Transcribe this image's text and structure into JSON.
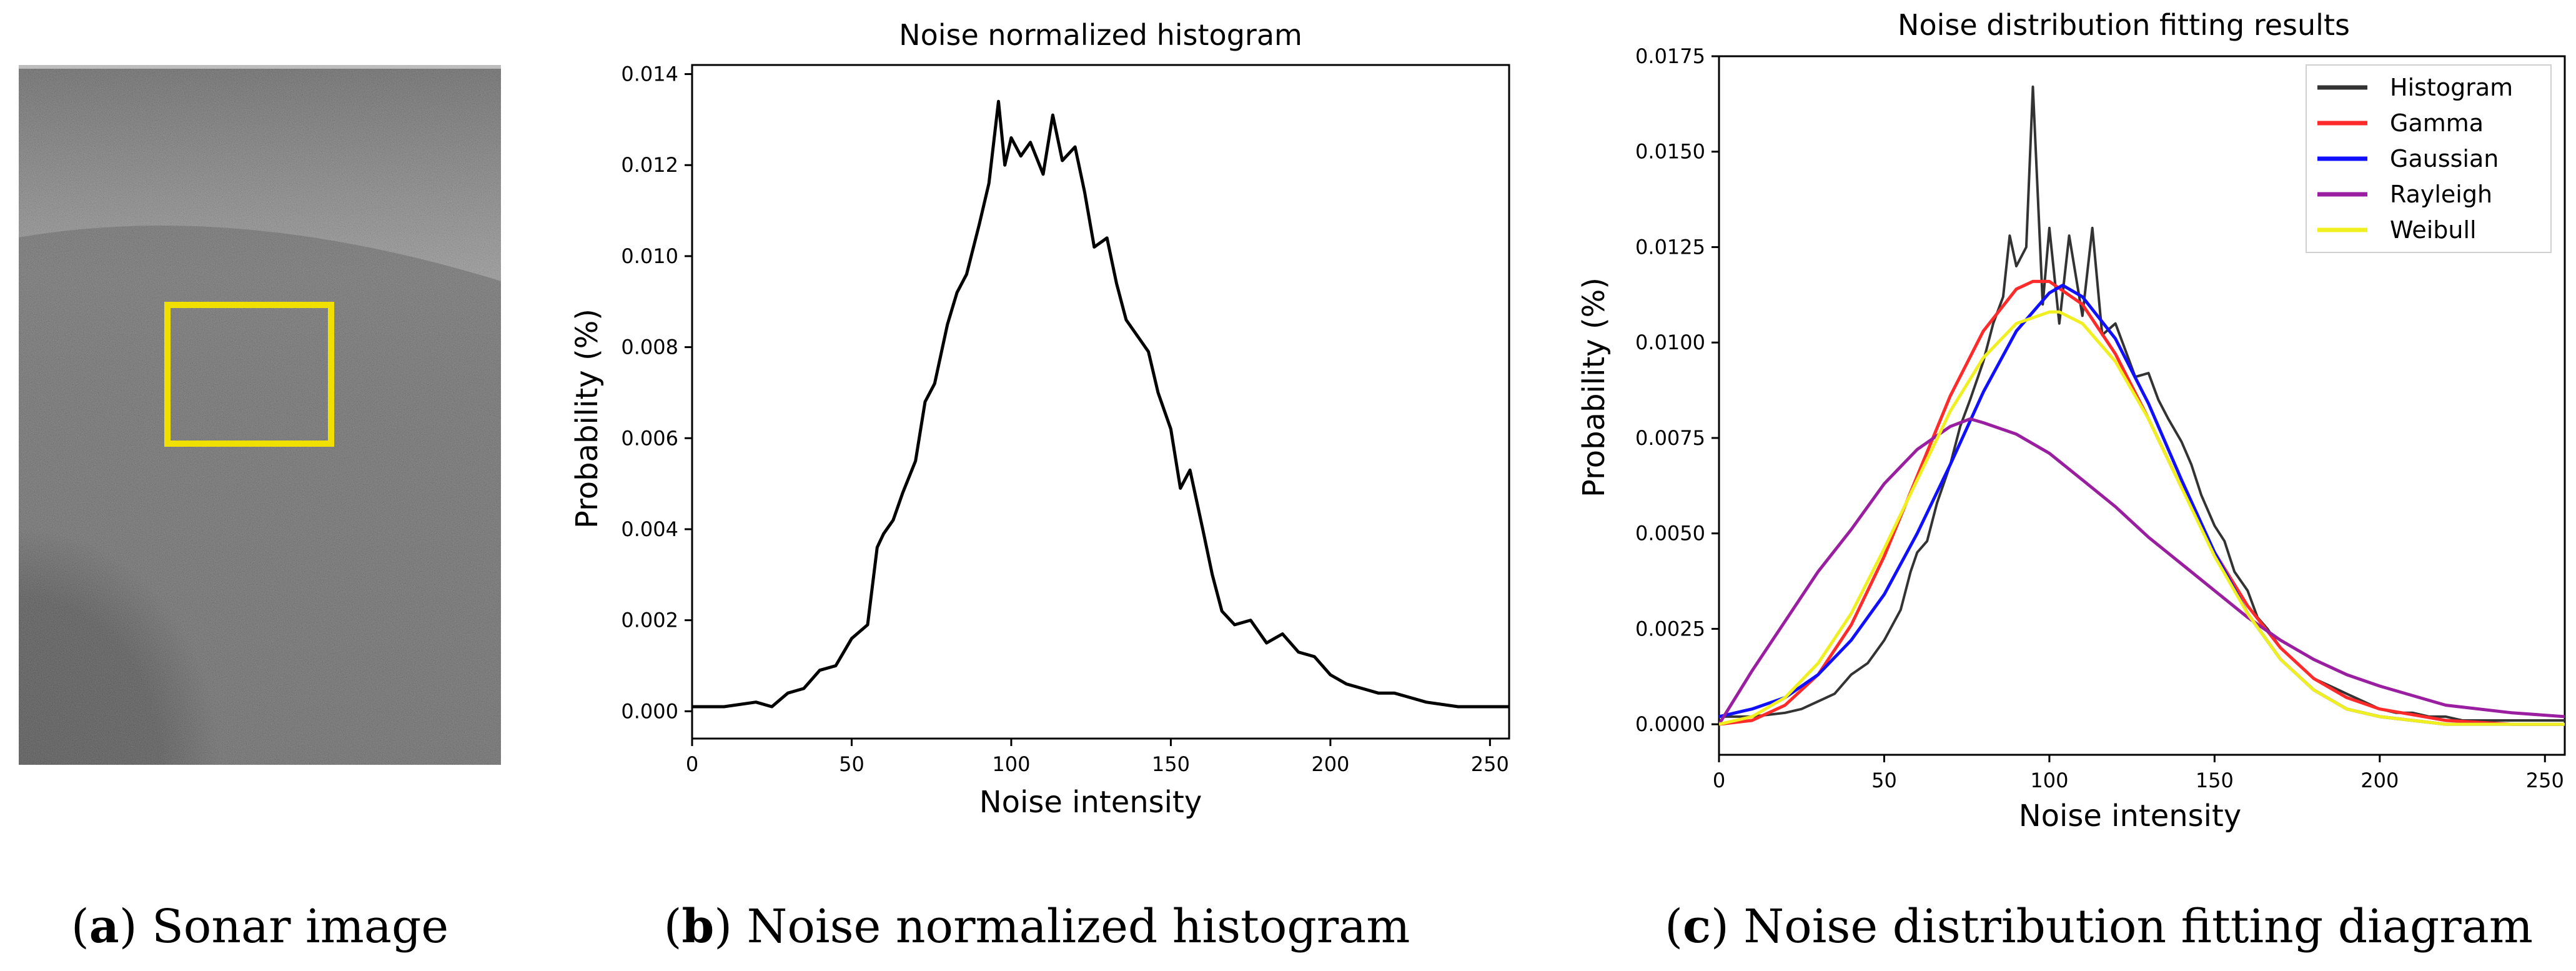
{
  "panel_a": {
    "caption_letter": "a",
    "caption_text": " Sonar image",
    "highlight_color": "#f0e000"
  },
  "chart_data": [
    {
      "id": "b",
      "type": "line",
      "title": "Noise normalized histogram",
      "xlabel": "Noise intensity",
      "ylabel": "Probability (%)",
      "xlim": [
        0,
        256
      ],
      "ylim": [
        -0.0006,
        0.0142
      ],
      "xticks": [
        0,
        50,
        100,
        150,
        200,
        250
      ],
      "xtick_labels": [
        "0",
        "50",
        "100",
        "150",
        "200",
        "250"
      ],
      "yticks": [
        0,
        0.002,
        0.004,
        0.006,
        0.008,
        0.01,
        0.012,
        0.014
      ],
      "ytick_labels": [
        "0.000",
        "0.002",
        "0.004",
        "0.006",
        "0.008",
        "0.010",
        "0.012",
        "0.014"
      ],
      "caption_letter": "b",
      "caption_text": " Noise normalized histogram",
      "series": [
        {
          "name": "Histogram",
          "color": "#000000",
          "x": [
            0,
            10,
            20,
            25,
            30,
            35,
            40,
            45,
            50,
            55,
            58,
            60,
            63,
            66,
            70,
            73,
            76,
            80,
            83,
            86,
            90,
            93,
            96,
            98,
            100,
            103,
            106,
            110,
            113,
            116,
            120,
            123,
            126,
            130,
            133,
            136,
            140,
            143,
            146,
            150,
            153,
            156,
            160,
            163,
            166,
            170,
            175,
            180,
            185,
            190,
            195,
            200,
            205,
            210,
            215,
            220,
            225,
            230,
            240,
            250,
            256
          ],
          "values": [
            0.0001,
            0.0001,
            0.0002,
            0.0001,
            0.0004,
            0.0005,
            0.0009,
            0.001,
            0.0016,
            0.0019,
            0.0036,
            0.0039,
            0.0042,
            0.0048,
            0.0055,
            0.0068,
            0.0072,
            0.0085,
            0.0092,
            0.0096,
            0.0107,
            0.0116,
            0.0134,
            0.012,
            0.0126,
            0.0122,
            0.0125,
            0.0118,
            0.0131,
            0.0121,
            0.0124,
            0.0114,
            0.0102,
            0.0104,
            0.0094,
            0.0086,
            0.0082,
            0.0079,
            0.007,
            0.0062,
            0.0049,
            0.0053,
            0.004,
            0.003,
            0.0022,
            0.0019,
            0.002,
            0.0015,
            0.0017,
            0.0013,
            0.0012,
            0.0008,
            0.0006,
            0.0005,
            0.0004,
            0.0004,
            0.0003,
            0.0002,
            0.0001,
            0.0001,
            0.0001
          ]
        }
      ]
    },
    {
      "id": "c",
      "type": "line",
      "title": "Noise distribution fitting results",
      "xlabel": "Noise intensity",
      "ylabel": "Probability (%)",
      "xlim": [
        0,
        256
      ],
      "ylim": [
        -0.0008,
        0.0175
      ],
      "xticks": [
        0,
        50,
        100,
        150,
        200,
        250
      ],
      "xtick_labels": [
        "0",
        "50",
        "100",
        "150",
        "200",
        "250"
      ],
      "yticks": [
        0,
        0.0025,
        0.005,
        0.0075,
        0.01,
        0.0125,
        0.015,
        0.0175
      ],
      "ytick_labels": [
        "0.0000",
        "0.0025",
        "0.0050",
        "0.0075",
        "0.0100",
        "0.0125",
        "0.0150",
        "0.0175"
      ],
      "legend_position": "top-right",
      "caption_letter": "c",
      "caption_text": " Noise distribution fitting diagram",
      "series": [
        {
          "name": "Histogram",
          "color": "#333333",
          "x": [
            0,
            10,
            20,
            25,
            30,
            35,
            40,
            45,
            50,
            55,
            58,
            60,
            63,
            66,
            70,
            73,
            76,
            80,
            83,
            86,
            88,
            90,
            93,
            95,
            98,
            100,
            103,
            106,
            110,
            113,
            116,
            120,
            123,
            126,
            130,
            133,
            136,
            140,
            143,
            146,
            150,
            153,
            156,
            160,
            163,
            166,
            170,
            175,
            180,
            185,
            190,
            195,
            200,
            205,
            210,
            215,
            220,
            225,
            230,
            240,
            250,
            256
          ],
          "values": [
            0.0002,
            0.0002,
            0.0003,
            0.0004,
            0.0006,
            0.0008,
            0.0013,
            0.0016,
            0.0022,
            0.003,
            0.004,
            0.0045,
            0.0048,
            0.0058,
            0.0068,
            0.0078,
            0.0085,
            0.0095,
            0.0105,
            0.0112,
            0.0128,
            0.012,
            0.0125,
            0.0167,
            0.011,
            0.013,
            0.0105,
            0.0128,
            0.0107,
            0.013,
            0.0102,
            0.0105,
            0.0098,
            0.0091,
            0.0092,
            0.0085,
            0.008,
            0.0074,
            0.0068,
            0.006,
            0.0052,
            0.0048,
            0.004,
            0.0035,
            0.0028,
            0.0025,
            0.002,
            0.0016,
            0.0012,
            0.001,
            0.0008,
            0.0006,
            0.0004,
            0.0003,
            0.0003,
            0.0002,
            0.0002,
            0.0001,
            0.0001,
            0.0001,
            0.0001,
            0.0001
          ]
        },
        {
          "name": "Gamma",
          "color": "#ff2a2a",
          "x": [
            0,
            10,
            20,
            30,
            40,
            50,
            60,
            70,
            80,
            90,
            95,
            100,
            110,
            120,
            130,
            140,
            150,
            160,
            170,
            180,
            190,
            200,
            220,
            240,
            256
          ],
          "values": [
            0.0,
            0.0001,
            0.0005,
            0.0013,
            0.0026,
            0.0044,
            0.0065,
            0.0086,
            0.0103,
            0.0114,
            0.0116,
            0.0116,
            0.011,
            0.0097,
            0.008,
            0.0062,
            0.0045,
            0.0031,
            0.002,
            0.0012,
            0.0007,
            0.0004,
            0.0001,
            0.0,
            0.0
          ]
        },
        {
          "name": "Gaussian",
          "color": "#1010ff",
          "x": [
            0,
            10,
            20,
            30,
            40,
            50,
            60,
            70,
            80,
            90,
            100,
            104,
            110,
            120,
            130,
            140,
            150,
            160,
            170,
            180,
            190,
            200,
            220,
            240,
            256
          ],
          "values": [
            0.0002,
            0.0004,
            0.0007,
            0.0013,
            0.0022,
            0.0034,
            0.005,
            0.0068,
            0.0087,
            0.0103,
            0.0113,
            0.0115,
            0.0112,
            0.0101,
            0.0084,
            0.0064,
            0.0045,
            0.0029,
            0.0017,
            0.0009,
            0.0004,
            0.0002,
            0.0,
            0.0,
            0.0
          ]
        },
        {
          "name": "Rayleigh",
          "color": "#9a1ea0",
          "x": [
            0,
            10,
            20,
            30,
            40,
            50,
            60,
            70,
            76,
            80,
            90,
            100,
            110,
            120,
            130,
            140,
            150,
            160,
            170,
            180,
            190,
            200,
            220,
            240,
            256
          ],
          "values": [
            0.0,
            0.0014,
            0.0027,
            0.004,
            0.0051,
            0.0063,
            0.0072,
            0.0078,
            0.008,
            0.0079,
            0.0076,
            0.0071,
            0.0064,
            0.0057,
            0.0049,
            0.0042,
            0.0035,
            0.0028,
            0.0022,
            0.0017,
            0.0013,
            0.001,
            0.0005,
            0.0003,
            0.0002
          ]
        },
        {
          "name": "Weibull",
          "color": "#f0f020",
          "x": [
            0,
            10,
            20,
            30,
            40,
            50,
            60,
            70,
            80,
            90,
            100,
            103,
            110,
            120,
            130,
            140,
            150,
            160,
            170,
            180,
            190,
            200,
            220,
            240,
            256
          ],
          "values": [
            0.0,
            0.0002,
            0.0007,
            0.0016,
            0.0029,
            0.0046,
            0.0064,
            0.0082,
            0.0096,
            0.0105,
            0.0108,
            0.0108,
            0.0105,
            0.0095,
            0.008,
            0.0062,
            0.0044,
            0.0029,
            0.0017,
            0.0009,
            0.0004,
            0.0002,
            0.0,
            0.0,
            0.0
          ]
        }
      ]
    }
  ]
}
